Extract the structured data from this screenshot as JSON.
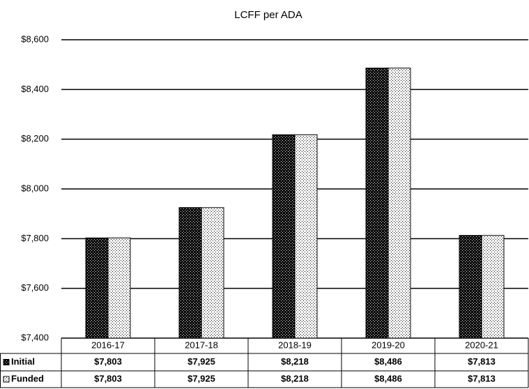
{
  "chart_data": {
    "type": "bar",
    "title": "LCFF per ADA",
    "categories": [
      "2016-17",
      "2017-18",
      "2018-19",
      "2019-20",
      "2020-21"
    ],
    "series": [
      {
        "name": "Initial",
        "color": "#000000",
        "values": [
          7803,
          7925,
          8218,
          8486,
          7813
        ],
        "value_labels": [
          "$7,803",
          "$7,925",
          "$8,218",
          "$8,486",
          "$7,813"
        ]
      },
      {
        "name": "Funded",
        "color": "#ffffff",
        "values": [
          7803,
          7925,
          8218,
          8486,
          7813
        ],
        "value_labels": [
          "$7,803",
          "$7,925",
          "$8,218",
          "$8,486",
          "$7,813"
        ]
      }
    ],
    "ylim": [
      7400,
      8600
    ],
    "yticks": [
      {
        "value": 7400,
        "label": "$7,400"
      },
      {
        "value": 7600,
        "label": "$7,600"
      },
      {
        "value": 7800,
        "label": "$7,800"
      },
      {
        "value": 8000,
        "label": "$8,000"
      },
      {
        "value": 8200,
        "label": "$8,200"
      },
      {
        "value": 8400,
        "label": "$8,400"
      },
      {
        "value": 8600,
        "label": "$8,600"
      }
    ],
    "grid": true
  }
}
